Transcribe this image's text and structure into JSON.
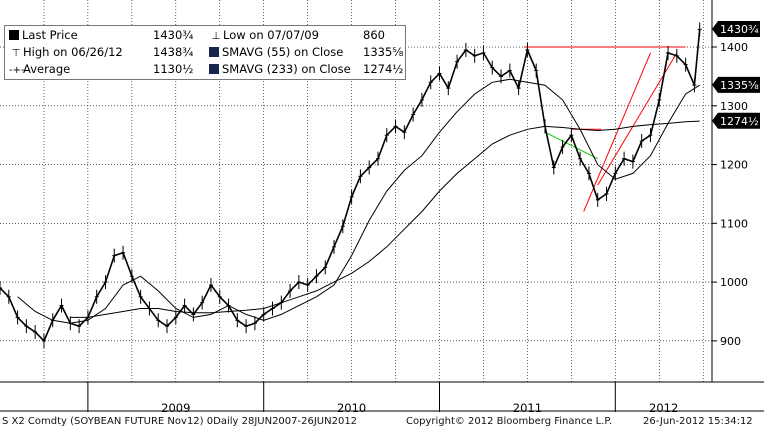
{
  "legend": {
    "last_price_label": "Last Price",
    "last_price_value": "1430¾",
    "high_label": "High on 06/26/12",
    "high_value": "1438¾",
    "average_label": "Average",
    "average_value": "1130½",
    "low_label": "Low on 07/07/09",
    "low_value": "860",
    "sma55_label": "SMAVG (55) on Close",
    "sma55_value": "1335⅝",
    "sma233_label": "SMAVG (233) on Close",
    "sma233_value": "1274½"
  },
  "footer": {
    "ticker": "S X2 Comdty (SOYBEAN FUTURE    Nov12) 0Daily 28JUN2007-26JUN2012",
    "copyright": "Copyright© 2012 Bloomberg Finance L.P.",
    "timestamp": "26-Jun-2012 15:34:12"
  },
  "colors": {
    "price": "#000000",
    "sma55": "#000000",
    "sma233": "#000000",
    "trend_red": "#ff0000",
    "trend_green": "#00cc00",
    "tag_bg": "#000000",
    "tag_fg": "#ffffff"
  },
  "chart_data": {
    "type": "line",
    "ylim": [
      830,
      1480
    ],
    "y_ticks": [
      900,
      1000,
      1100,
      1200,
      1300,
      1400
    ],
    "x_year_labels": [
      "2009",
      "2010",
      "2011",
      "2012"
    ],
    "price_tags": [
      "1430¾",
      "1335⅝",
      "1274½"
    ],
    "series": [
      {
        "name": "Last Price",
        "x": [
          2008.5,
          2008.55,
          2008.6,
          2008.65,
          2008.7,
          2008.75,
          2008.8,
          2008.85,
          2008.9,
          2008.95,
          2009.0,
          2009.05,
          2009.1,
          2009.15,
          2009.2,
          2009.25,
          2009.3,
          2009.35,
          2009.4,
          2009.45,
          2009.5,
          2009.55,
          2009.6,
          2009.65,
          2009.7,
          2009.75,
          2009.8,
          2009.85,
          2009.9,
          2009.95,
          2010.0,
          2010.05,
          2010.1,
          2010.15,
          2010.2,
          2010.25,
          2010.3,
          2010.35,
          2010.4,
          2010.45,
          2010.5,
          2010.55,
          2010.6,
          2010.65,
          2010.7,
          2010.75,
          2010.8,
          2010.85,
          2010.9,
          2010.95,
          2011.0,
          2011.05,
          2011.1,
          2011.15,
          2011.2,
          2011.25,
          2011.3,
          2011.35,
          2011.4,
          2011.45,
          2011.5,
          2011.55,
          2011.6,
          2011.65,
          2011.7,
          2011.75,
          2011.8,
          2011.85,
          2011.9,
          2011.95,
          2012.0,
          2012.05,
          2012.1,
          2012.15,
          2012.2,
          2012.25,
          2012.3,
          2012.35,
          2012.4,
          2012.45,
          2012.48
        ],
        "y": [
          990,
          975,
          940,
          925,
          915,
          900,
          935,
          960,
          930,
          925,
          940,
          975,
          1000,
          1045,
          1050,
          1010,
          975,
          955,
          935,
          925,
          940,
          960,
          945,
          965,
          995,
          975,
          960,
          935,
          925,
          930,
          945,
          955,
          965,
          985,
          1000,
          995,
          1010,
          1025,
          1060,
          1095,
          1145,
          1180,
          1195,
          1210,
          1250,
          1265,
          1255,
          1285,
          1310,
          1340,
          1355,
          1330,
          1375,
          1395,
          1385,
          1390,
          1365,
          1350,
          1360,
          1330,
          1395,
          1360,
          1265,
          1195,
          1230,
          1250,
          1210,
          1185,
          1140,
          1150,
          1185,
          1210,
          1205,
          1240,
          1250,
          1310,
          1390,
          1385,
          1370,
          1335,
          1430
        ]
      },
      {
        "name": "SMAVG (55) on Close",
        "x": [
          2008.6,
          2008.7,
          2008.8,
          2008.9,
          2009.0,
          2009.1,
          2009.2,
          2009.3,
          2009.4,
          2009.5,
          2009.6,
          2009.7,
          2009.8,
          2009.9,
          2010.0,
          2010.1,
          2010.2,
          2010.3,
          2010.4,
          2010.5,
          2010.6,
          2010.7,
          2010.8,
          2010.9,
          2011.0,
          2011.1,
          2011.2,
          2011.3,
          2011.4,
          2011.5,
          2011.6,
          2011.7,
          2011.8,
          2011.9,
          2012.0,
          2012.1,
          2012.2,
          2012.3,
          2012.4,
          2012.48
        ],
        "y": [
          975,
          950,
          935,
          930,
          935,
          955,
          995,
          1010,
          985,
          955,
          940,
          945,
          960,
          945,
          935,
          945,
          960,
          975,
          995,
          1045,
          1105,
          1155,
          1190,
          1215,
          1255,
          1290,
          1320,
          1340,
          1345,
          1340,
          1335,
          1310,
          1260,
          1200,
          1175,
          1185,
          1215,
          1270,
          1320,
          1335
        ]
      },
      {
        "name": "SMAVG (233) on Close",
        "x": [
          2008.9,
          2009.0,
          2009.1,
          2009.2,
          2009.3,
          2009.4,
          2009.5,
          2009.6,
          2009.7,
          2009.8,
          2009.9,
          2010.0,
          2010.1,
          2010.2,
          2010.3,
          2010.4,
          2010.5,
          2010.6,
          2010.7,
          2010.8,
          2010.9,
          2011.0,
          2011.1,
          2011.2,
          2011.3,
          2011.4,
          2011.5,
          2011.6,
          2011.7,
          2011.8,
          2011.9,
          2012.0,
          2012.1,
          2012.2,
          2012.3,
          2012.4,
          2012.48
        ],
        "y": [
          940,
          940,
          945,
          950,
          955,
          955,
          950,
          948,
          948,
          950,
          952,
          955,
          965,
          975,
          985,
          1000,
          1015,
          1035,
          1060,
          1090,
          1120,
          1155,
          1185,
          1210,
          1235,
          1250,
          1260,
          1265,
          1263,
          1260,
          1258,
          1260,
          1265,
          1268,
          1270,
          1273,
          1274
        ]
      }
    ]
  }
}
